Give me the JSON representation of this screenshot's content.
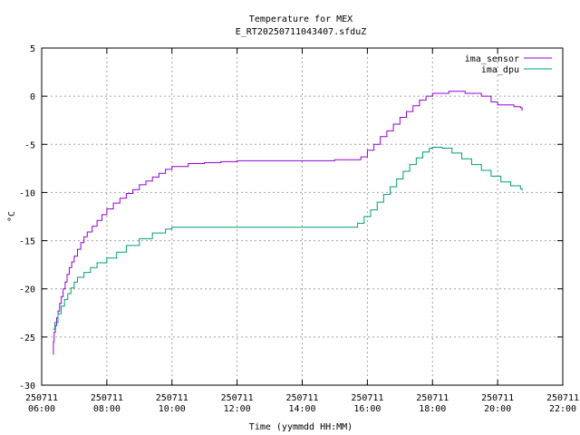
{
  "chart_data": {
    "type": "line",
    "title": "Temperature for MEX",
    "subtitle": "E_RT20250711043407.sfduZ",
    "xlabel": "Time (yymmdd HH:MM)",
    "ylabel": "°C",
    "xlim": [
      6,
      22
    ],
    "ylim": [
      -30,
      5
    ],
    "grid": true,
    "legend_position": "top-right",
    "x_ticks": [
      {
        "date": "250711",
        "time": "06:00",
        "hour": 6
      },
      {
        "date": "250711",
        "time": "08:00",
        "hour": 8
      },
      {
        "date": "250711",
        "time": "10:00",
        "hour": 10
      },
      {
        "date": "250711",
        "time": "12:00",
        "hour": 12
      },
      {
        "date": "250711",
        "time": "14:00",
        "hour": 14
      },
      {
        "date": "250711",
        "time": "16:00",
        "hour": 16
      },
      {
        "date": "250711",
        "time": "18:00",
        "hour": 18
      },
      {
        "date": "250711",
        "time": "20:00",
        "hour": 20
      },
      {
        "date": "250711",
        "time": "22:00",
        "hour": 22
      }
    ],
    "y_ticks": [
      5,
      0,
      -5,
      -10,
      -15,
      -20,
      -25,
      -30
    ],
    "series": [
      {
        "name": "ima_sensor",
        "color": "#9400d3",
        "x": [
          6.35,
          6.36,
          6.38,
          6.42,
          6.46,
          6.5,
          6.55,
          6.6,
          6.66,
          6.72,
          6.78,
          6.85,
          6.92,
          7.0,
          7.1,
          7.2,
          7.3,
          7.4,
          7.55,
          7.7,
          7.85,
          8.0,
          8.2,
          8.4,
          8.6,
          8.8,
          9.0,
          9.2,
          9.4,
          9.6,
          9.8,
          10.0,
          10.5,
          11.0,
          11.5,
          12.0,
          13.0,
          14.0,
          15.0,
          15.8,
          16.0,
          16.2,
          16.4,
          16.6,
          16.8,
          17.0,
          17.2,
          17.4,
          17.6,
          17.8,
          18.0,
          18.5,
          19.0,
          19.5,
          19.8,
          20.0,
          20.5,
          20.7,
          20.75
        ],
        "y": [
          -26.8,
          -25.5,
          -24.5,
          -23.8,
          -23.0,
          -22.3,
          -21.5,
          -20.8,
          -20.0,
          -19.3,
          -18.5,
          -17.8,
          -17.2,
          -16.6,
          -15.9,
          -15.2,
          -14.6,
          -14.1,
          -13.5,
          -12.9,
          -12.3,
          -11.7,
          -11.1,
          -10.6,
          -10.1,
          -9.7,
          -9.2,
          -8.8,
          -8.4,
          -8.0,
          -7.6,
          -7.3,
          -7.0,
          -6.9,
          -6.8,
          -6.7,
          -6.7,
          -6.7,
          -6.6,
          -6.3,
          -5.6,
          -5.0,
          -4.2,
          -3.6,
          -2.9,
          -2.2,
          -1.6,
          -1.0,
          -0.4,
          0.0,
          0.3,
          0.5,
          0.3,
          0.0,
          -0.6,
          -0.9,
          -1.1,
          -1.2,
          -1.5
        ]
      },
      {
        "name": "ima_dpu",
        "color": "#009e73",
        "x": [
          6.35,
          6.4,
          6.5,
          6.6,
          6.7,
          6.8,
          6.9,
          7.0,
          7.1,
          7.3,
          7.5,
          7.7,
          8.0,
          8.3,
          8.6,
          9.0,
          9.4,
          9.8,
          10.0,
          11.0,
          12.0,
          13.0,
          14.0,
          15.0,
          15.7,
          15.9,
          16.1,
          16.3,
          16.5,
          16.7,
          16.9,
          17.1,
          17.3,
          17.5,
          17.7,
          17.9,
          18.0,
          18.3,
          18.6,
          18.9,
          19.2,
          19.5,
          19.8,
          20.1,
          20.4,
          20.7,
          20.75
        ],
        "y": [
          -24.2,
          -23.5,
          -22.6,
          -21.8,
          -21.1,
          -20.5,
          -19.9,
          -19.3,
          -18.8,
          -18.3,
          -17.8,
          -17.3,
          -16.8,
          -16.2,
          -15.5,
          -14.8,
          -14.2,
          -13.8,
          -13.6,
          -13.6,
          -13.6,
          -13.6,
          -13.6,
          -13.6,
          -13.2,
          -12.5,
          -11.8,
          -11.0,
          -10.2,
          -9.4,
          -8.6,
          -7.8,
          -7.1,
          -6.4,
          -5.8,
          -5.4,
          -5.3,
          -5.4,
          -5.9,
          -6.5,
          -7.1,
          -7.7,
          -8.3,
          -8.9,
          -9.3,
          -9.6,
          -9.8
        ]
      }
    ]
  }
}
